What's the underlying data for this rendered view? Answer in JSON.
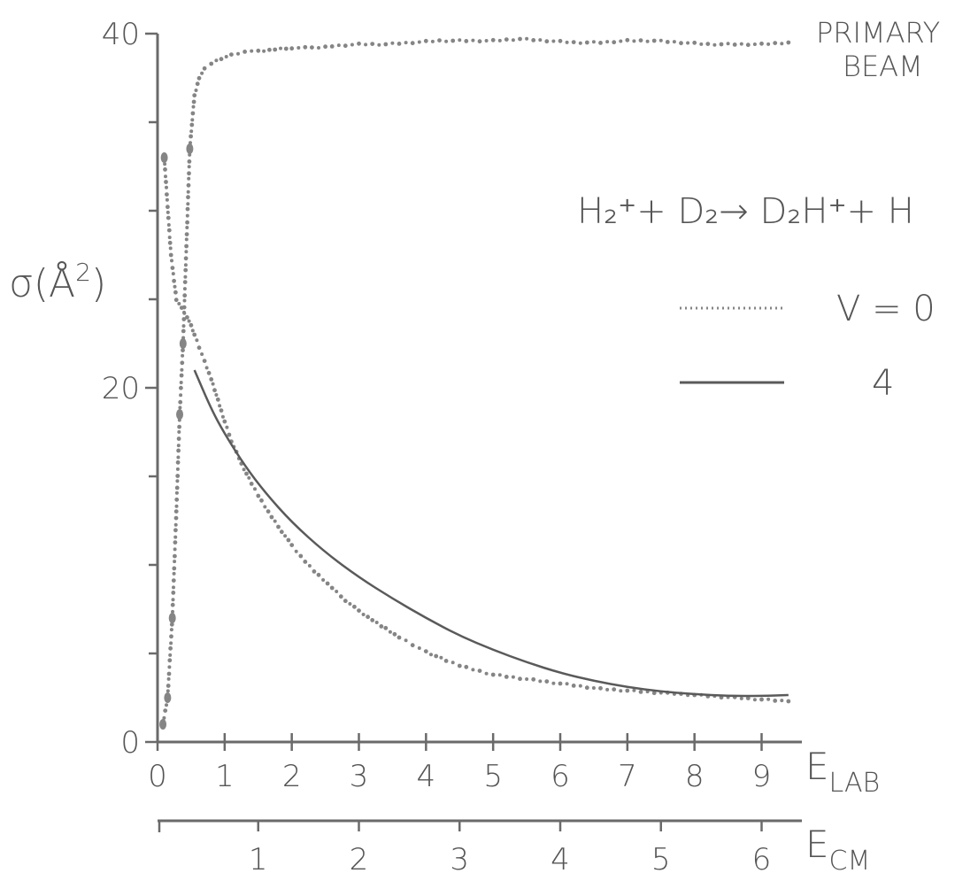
{
  "chart_data": {
    "type": "line",
    "ylabel_symbol": "σ",
    "ylabel_unit": "(Å",
    "ylabel_unit_sup": "2",
    "ylabel_unit_close": ")",
    "ylim": [
      0,
      40
    ],
    "yticks": [
      0,
      20,
      40
    ],
    "yminor": [
      5,
      10,
      15,
      25,
      30,
      35
    ],
    "x_lab_label": "E",
    "x_lab_sub": "LAB",
    "xlim_lab": [
      0,
      9.6
    ],
    "xticks_lab": [
      "0",
      "1",
      "2",
      "3",
      "4",
      "5",
      "6",
      "7",
      "8",
      "9"
    ],
    "x_cm_label": "E",
    "x_cm_sub": "CM",
    "xticks_cm": [
      "1",
      "2",
      "3",
      "4",
      "5",
      "6"
    ],
    "xticks_cm_lab_positions": [
      1.5,
      3.0,
      4.5,
      6.0,
      7.5,
      9.0
    ],
    "annotations": {
      "primary_beam_line1": "PRIMARY",
      "primary_beam_line2": "BEAM",
      "reaction": "H₂⁺+ D₂→ D₂H⁺+ H"
    },
    "legend": {
      "placement": "right",
      "entries": [
        {
          "label": "V = 0",
          "style": "dotted"
        },
        {
          "label": "4",
          "style": "solid"
        }
      ]
    },
    "series": [
      {
        "style": "dotted",
        "x": [
          0.08,
          0.15,
          0.22,
          0.28,
          0.33,
          0.38,
          0.43,
          0.48,
          0.55,
          0.62,
          0.7,
          0.8,
          0.95,
          1.1,
          1.3,
          1.5,
          1.75,
          2.0,
          2.3,
          2.6,
          3.0,
          3.4,
          3.8,
          4.2,
          4.6,
          5.0,
          5.4,
          5.8,
          6.2,
          6.6,
          7.0,
          7.4,
          7.8,
          8.2,
          8.6,
          9.0,
          9.4
        ],
        "y": [
          1.0,
          2.5,
          7.0,
          13.0,
          18.5,
          22.5,
          28.0,
          33.5,
          36.5,
          37.5,
          38.0,
          38.3,
          38.6,
          38.8,
          39.0,
          39.0,
          39.1,
          39.2,
          39.2,
          39.3,
          39.4,
          39.4,
          39.5,
          39.6,
          39.6,
          39.6,
          39.7,
          39.6,
          39.5,
          39.5,
          39.6,
          39.6,
          39.5,
          39.4,
          39.4,
          39.4,
          39.5
        ]
      },
      {
        "style": "dotted",
        "x": [
          0.1,
          0.2,
          0.28,
          0.36,
          0.44,
          0.5,
          0.55,
          0.62,
          0.7,
          0.8,
          0.9,
          1.0,
          1.1,
          1.25,
          1.4,
          1.55,
          1.7,
          1.85,
          2.0,
          2.2,
          2.4,
          2.6,
          2.8,
          3.0,
          3.2,
          3.4,
          3.6,
          3.8,
          4.0,
          4.3,
          4.6,
          5.0,
          5.4,
          5.8,
          6.2,
          6.6,
          7.0,
          7.4,
          7.8,
          8.2,
          8.6,
          9.0,
          9.4
        ],
        "y": [
          33.0,
          27.5,
          25.0,
          24.5,
          24.0,
          23.5,
          23.0,
          22.3,
          21.5,
          20.5,
          19.3,
          18.1,
          17.0,
          15.7,
          14.6,
          13.6,
          12.7,
          11.9,
          11.1,
          10.2,
          9.4,
          8.7,
          8.0,
          7.4,
          6.9,
          6.4,
          5.9,
          5.5,
          5.1,
          4.6,
          4.2,
          3.8,
          3.6,
          3.4,
          3.2,
          3.0,
          2.9,
          2.8,
          2.7,
          2.6,
          2.5,
          2.4,
          2.3
        ]
      },
      {
        "style": "solid",
        "x": [
          0.55,
          0.8,
          1.0,
          1.3,
          1.6,
          2.0,
          2.5,
          3.0,
          3.5,
          4.0,
          4.5,
          5.0,
          5.5,
          6.0,
          6.5,
          7.0,
          7.5,
          8.0,
          8.5,
          9.0,
          9.4
        ],
        "y": [
          21.0,
          18.8,
          17.4,
          15.6,
          14.1,
          12.4,
          10.7,
          9.3,
          8.1,
          7.0,
          6.0,
          5.2,
          4.5,
          3.9,
          3.45,
          3.1,
          2.85,
          2.7,
          2.6,
          2.6,
          2.65
        ]
      }
    ]
  }
}
